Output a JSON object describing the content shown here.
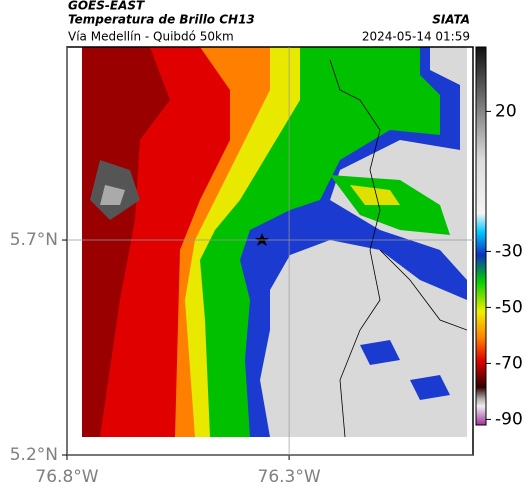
{
  "header": {
    "source": "GOES-EAST",
    "title": "Temperatura de Brillo CH13",
    "subtitle": "Vía Medellín - Quibdó 50km",
    "agency": "SIATA",
    "datetime": "2024-05-14 01:59"
  },
  "map": {
    "xlim": [
      -76.8,
      -75.886
    ],
    "ylim": [
      5.2,
      6.149
    ],
    "xticks": [
      {
        "value": -76.8,
        "label": "76.8°W"
      },
      {
        "value": -76.3,
        "label": "76.3°W"
      }
    ],
    "yticks": [
      {
        "value": 5.7,
        "label": "5.7°N"
      },
      {
        "value": 5.2,
        "label": "5.2°N"
      }
    ],
    "grid": true
  },
  "colorbar": {
    "lim": [
      -92,
      43
    ],
    "ticks": [
      20,
      -30,
      -50,
      -70,
      -90
    ]
  }
}
